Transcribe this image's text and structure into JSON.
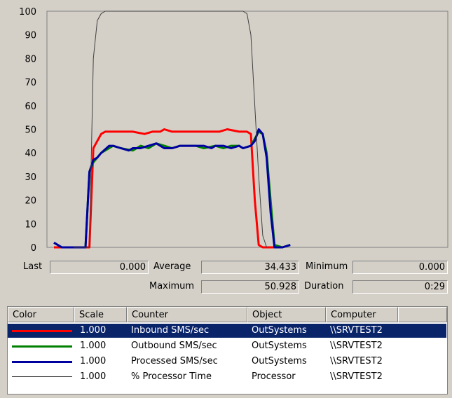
{
  "chart_data": {
    "type": "line",
    "ylim": [
      0,
      100
    ],
    "y_ticks": [
      "100",
      "90",
      "80",
      "70",
      "60",
      "50",
      "40",
      "30",
      "20",
      "10",
      "0"
    ],
    "x_samples": 100,
    "grid": false,
    "series": [
      {
        "name": "Inbound SMS/sec",
        "color": "#ff0000",
        "points": [
          [
            0,
            0
          ],
          [
            5,
            0
          ],
          [
            8,
            0
          ],
          [
            9,
            0
          ],
          [
            10,
            42
          ],
          [
            11,
            45
          ],
          [
            12,
            48
          ],
          [
            13,
            49
          ],
          [
            15,
            49
          ],
          [
            18,
            49
          ],
          [
            20,
            49
          ],
          [
            23,
            48
          ],
          [
            25,
            49
          ],
          [
            27,
            49
          ],
          [
            28,
            50
          ],
          [
            30,
            49
          ],
          [
            32,
            49
          ],
          [
            34,
            49
          ],
          [
            36,
            49
          ],
          [
            38,
            49
          ],
          [
            40,
            49
          ],
          [
            42,
            49
          ],
          [
            44,
            50
          ],
          [
            47,
            49
          ],
          [
            49,
            49
          ],
          [
            50,
            48
          ],
          [
            51,
            20
          ],
          [
            52,
            1
          ],
          [
            53,
            0
          ],
          [
            56,
            0
          ]
        ]
      },
      {
        "name": "Outbound SMS/sec",
        "color": "#008000",
        "points": [
          [
            0,
            2
          ],
          [
            2,
            0
          ],
          [
            4,
            0
          ],
          [
            5,
            0
          ],
          [
            7,
            0
          ],
          [
            8,
            0
          ],
          [
            9,
            32
          ],
          [
            10,
            36
          ],
          [
            11,
            38
          ],
          [
            12,
            40
          ],
          [
            14,
            42
          ],
          [
            15,
            43
          ],
          [
            17,
            42
          ],
          [
            20,
            41
          ],
          [
            22,
            43
          ],
          [
            24,
            42
          ],
          [
            26,
            44
          ],
          [
            28,
            43
          ],
          [
            30,
            42
          ],
          [
            32,
            43
          ],
          [
            34,
            43
          ],
          [
            36,
            43
          ],
          [
            38,
            42
          ],
          [
            41,
            43
          ],
          [
            43,
            42
          ],
          [
            45,
            43
          ],
          [
            47,
            43
          ],
          [
            48,
            42
          ],
          [
            50,
            43
          ],
          [
            51,
            46
          ],
          [
            52,
            49
          ],
          [
            53,
            48
          ],
          [
            54,
            40
          ],
          [
            55,
            20
          ],
          [
            56,
            1
          ],
          [
            58,
            0
          ],
          [
            60,
            1
          ]
        ]
      },
      {
        "name": "Processed SMS/sec",
        "color": "#0000a0",
        "points": [
          [
            0,
            2
          ],
          [
            2,
            0
          ],
          [
            4,
            0
          ],
          [
            5,
            0
          ],
          [
            7,
            0
          ],
          [
            8,
            0
          ],
          [
            9,
            32
          ],
          [
            10,
            37
          ],
          [
            11,
            38
          ],
          [
            12,
            40
          ],
          [
            14,
            43
          ],
          [
            15,
            43
          ],
          [
            17,
            42
          ],
          [
            19,
            41
          ],
          [
            20,
            42
          ],
          [
            22,
            42
          ],
          [
            24,
            43
          ],
          [
            26,
            44
          ],
          [
            28,
            42
          ],
          [
            30,
            42
          ],
          [
            32,
            43
          ],
          [
            34,
            43
          ],
          [
            36,
            43
          ],
          [
            38,
            43
          ],
          [
            40,
            42
          ],
          [
            41,
            43
          ],
          [
            43,
            43
          ],
          [
            45,
            42
          ],
          [
            47,
            43
          ],
          [
            48,
            42
          ],
          [
            50,
            43
          ],
          [
            51,
            45
          ],
          [
            52,
            50
          ],
          [
            53,
            48
          ],
          [
            54,
            38
          ],
          [
            55,
            15
          ],
          [
            56,
            0
          ],
          [
            58,
            0
          ],
          [
            60,
            1
          ]
        ]
      },
      {
        "name": "% Processor Time",
        "color": "#404040",
        "points": [
          [
            5,
            0
          ],
          [
            9,
            0
          ],
          [
            10,
            80
          ],
          [
            11,
            96
          ],
          [
            12,
            99
          ],
          [
            13,
            100
          ],
          [
            20,
            100
          ],
          [
            30,
            100
          ],
          [
            40,
            100
          ],
          [
            48,
            100
          ],
          [
            49,
            99
          ],
          [
            50,
            90
          ],
          [
            51,
            60
          ],
          [
            52,
            30
          ],
          [
            53,
            5
          ],
          [
            54,
            0
          ]
        ]
      }
    ]
  },
  "stats": {
    "last_label": "Last",
    "last_value": "0.000",
    "average_label": "Average",
    "average_value": "34.433",
    "minimum_label": "Minimum",
    "minimum_value": "0.000",
    "maximum_label": "Maximum",
    "maximum_value": "50.928",
    "duration_label": "Duration",
    "duration_value": "0:29"
  },
  "table": {
    "headers": {
      "color": "Color",
      "scale": "Scale",
      "counter": "Counter",
      "object": "Object",
      "computer": "Computer"
    },
    "rows": [
      {
        "color": "#ff0000",
        "scale": "1.000",
        "counter": "Inbound SMS/sec",
        "object": "OutSystems",
        "computer": "\\\\SRVTEST2",
        "selected": true
      },
      {
        "color": "#008000",
        "scale": "1.000",
        "counter": "Outbound SMS/sec",
        "object": "OutSystems",
        "computer": "\\\\SRVTEST2",
        "selected": false
      },
      {
        "color": "#0000a0",
        "scale": "1.000",
        "counter": "Processed SMS/sec",
        "object": "OutSystems",
        "computer": "\\\\SRVTEST2",
        "selected": false
      },
      {
        "color": "#404040",
        "scale": "1.000",
        "counter": "% Processor Time",
        "object": "Processor",
        "computer": "\\\\SRVTEST2",
        "selected": false
      }
    ]
  }
}
